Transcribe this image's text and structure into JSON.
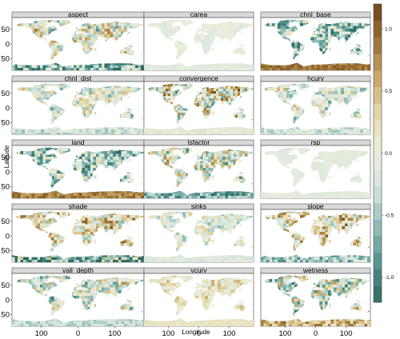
{
  "chart_data": {
    "type": "heatmap",
    "title": "",
    "xlabel": "Longitude",
    "ylabel": "Latitude",
    "panels": [
      "aspect",
      "carea",
      "chnl_base",
      "chnl_dist",
      "convergence",
      "hcurv",
      "land",
      "lsfactor",
      "rsp",
      "shade",
      "sinks",
      "slope",
      "vall_depth",
      "vcurv",
      "wetness"
    ],
    "x_ticks": [
      "100",
      "0",
      "100"
    ],
    "y_ticks": [
      "50",
      "0",
      "50"
    ],
    "colorbar": {
      "ticks": [
        "1.0",
        "0.5",
        "0.0",
        "-0.5",
        "-1.0"
      ],
      "range": [
        -1.2,
        1.2
      ],
      "n_bins": 18,
      "high_color": "#7a4f1c",
      "mid_color": "#eceedd",
      "low_color": "#2d6b60"
    }
  }
}
